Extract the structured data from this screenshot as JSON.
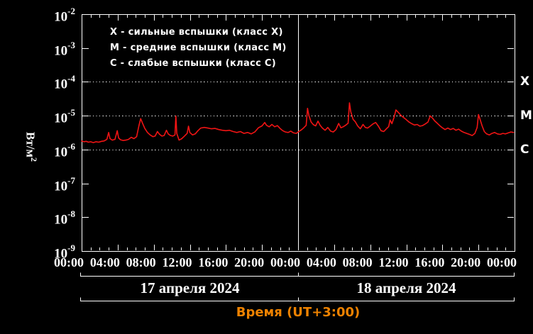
{
  "page": {
    "background": "#000000",
    "text_color": "#ffffff"
  },
  "chart_data": {
    "type": "line",
    "title": "Время (UT+3:00)",
    "title_color": "#ee8200",
    "ylabel": "Вт/м",
    "ylabel_exponent": "2",
    "legend": [
      "X - сильные вспышки (класс X)",
      "M - средние вспышки (класс M)",
      "C - слабые вспышки (класс C)"
    ],
    "x_axis": {
      "hours_span": 48,
      "major_tick_hours": 4,
      "minor_tick_hours": 1,
      "day_separator_hour": 24,
      "tick_labels": [
        "00:00",
        "04:00",
        "08:00",
        "12:00",
        "16:00",
        "20:00",
        "00:00",
        "04:00",
        "08:00",
        "12:00",
        "16:00",
        "20:00",
        "00:00"
      ],
      "day_labels": [
        "17 апреля 2024",
        "18 апреля 2024"
      ]
    },
    "y_axis": {
      "scale": "log",
      "base": "10",
      "exponents": [
        "-2",
        "-3",
        "-4",
        "-5",
        "-6",
        "-7",
        "-8",
        "-9"
      ],
      "top_value": 0.01,
      "bottom_value": 1e-09
    },
    "reference_lines": [
      {
        "label": "X",
        "flux": 0.0001
      },
      {
        "label": "M",
        "flux": 1e-05
      },
      {
        "label": "C",
        "flux": 1e-06
      }
    ],
    "series": [
      {
        "name": "xray-flux",
        "color": "#f01414",
        "flux_unit": "1e-6 W/m2",
        "points": [
          [
            0,
            1.8
          ],
          [
            0.25,
            1.7
          ],
          [
            0.5,
            1.75
          ],
          [
            0.75,
            1.65
          ],
          [
            1,
            1.7
          ],
          [
            1.3,
            1.6
          ],
          [
            1.6,
            1.7
          ],
          [
            1.9,
            1.65
          ],
          [
            2.2,
            1.75
          ],
          [
            2.5,
            1.8
          ],
          [
            2.8,
            2.0
          ],
          [
            3.0,
            3.2
          ],
          [
            3.15,
            2.1
          ],
          [
            3.4,
            1.9
          ],
          [
            3.7,
            2.0
          ],
          [
            3.95,
            3.6
          ],
          [
            4.1,
            2.2
          ],
          [
            4.3,
            1.95
          ],
          [
            4.6,
            1.85
          ],
          [
            4.9,
            1.9
          ],
          [
            5.2,
            2.0
          ],
          [
            5.5,
            2.3
          ],
          [
            5.8,
            2.1
          ],
          [
            6.1,
            2.4
          ],
          [
            6.35,
            5.0
          ],
          [
            6.55,
            8.2
          ],
          [
            6.75,
            6.0
          ],
          [
            7.0,
            4.2
          ],
          [
            7.3,
            3.2
          ],
          [
            7.6,
            2.7
          ],
          [
            7.9,
            2.4
          ],
          [
            8.15,
            2.5
          ],
          [
            8.4,
            3.4
          ],
          [
            8.65,
            2.8
          ],
          [
            8.9,
            2.5
          ],
          [
            9.15,
            2.6
          ],
          [
            9.4,
            3.7
          ],
          [
            9.6,
            2.9
          ],
          [
            9.85,
            2.6
          ],
          [
            10.1,
            2.5
          ],
          [
            10.35,
            2.7
          ],
          [
            10.45,
            9.8
          ],
          [
            10.55,
            3.0
          ],
          [
            10.8,
            1.9
          ],
          [
            11.1,
            2.1
          ],
          [
            11.4,
            2.5
          ],
          [
            11.7,
            3.0
          ],
          [
            11.85,
            4.9
          ],
          [
            12.0,
            3.2
          ],
          [
            12.3,
            2.7
          ],
          [
            12.6,
            2.9
          ],
          [
            12.9,
            3.6
          ],
          [
            13.2,
            4.3
          ],
          [
            13.6,
            4.5
          ],
          [
            14.0,
            4.3
          ],
          [
            14.4,
            4.1
          ],
          [
            14.8,
            4.2
          ],
          [
            15.2,
            3.9
          ],
          [
            15.6,
            3.7
          ],
          [
            16.0,
            3.6
          ],
          [
            16.4,
            3.7
          ],
          [
            16.8,
            3.4
          ],
          [
            17.2,
            3.2
          ],
          [
            17.6,
            3.4
          ],
          [
            18.0,
            3.0
          ],
          [
            18.4,
            3.2
          ],
          [
            18.8,
            2.9
          ],
          [
            19.2,
            3.3
          ],
          [
            19.6,
            4.4
          ],
          [
            20.0,
            5.0
          ],
          [
            20.3,
            6.3
          ],
          [
            20.5,
            5.2
          ],
          [
            20.8,
            4.7
          ],
          [
            21.1,
            5.5
          ],
          [
            21.4,
            4.7
          ],
          [
            21.7,
            5.1
          ],
          [
            22.0,
            4.2
          ],
          [
            22.3,
            3.6
          ],
          [
            22.6,
            3.3
          ],
          [
            22.9,
            3.2
          ],
          [
            23.2,
            3.5
          ],
          [
            23.5,
            3.1
          ],
          [
            23.8,
            3.0
          ],
          [
            24.0,
            3.3
          ],
          [
            24.3,
            3.7
          ],
          [
            24.6,
            4.3
          ],
          [
            24.9,
            5.2
          ],
          [
            25.05,
            16.5
          ],
          [
            25.2,
            10.0
          ],
          [
            25.45,
            6.5
          ],
          [
            25.7,
            5.4
          ],
          [
            25.95,
            5.0
          ],
          [
            26.2,
            6.9
          ],
          [
            26.45,
            5.2
          ],
          [
            26.7,
            4.3
          ],
          [
            27.0,
            3.7
          ],
          [
            27.3,
            4.5
          ],
          [
            27.6,
            3.5
          ],
          [
            27.9,
            3.3
          ],
          [
            28.2,
            3.9
          ],
          [
            28.5,
            5.9
          ],
          [
            28.75,
            4.4
          ],
          [
            29.0,
            4.7
          ],
          [
            29.3,
            5.3
          ],
          [
            29.55,
            6.0
          ],
          [
            29.7,
            24.0
          ],
          [
            29.85,
            13.0
          ],
          [
            30.1,
            7.8
          ],
          [
            30.35,
            6.6
          ],
          [
            30.6,
            5.0
          ],
          [
            30.9,
            4.1
          ],
          [
            31.2,
            5.5
          ],
          [
            31.45,
            4.5
          ],
          [
            31.7,
            4.3
          ],
          [
            32.0,
            4.9
          ],
          [
            32.3,
            5.7
          ],
          [
            32.6,
            6.3
          ],
          [
            32.9,
            4.9
          ],
          [
            33.2,
            3.6
          ],
          [
            33.5,
            3.4
          ],
          [
            33.8,
            4.1
          ],
          [
            34.05,
            4.8
          ],
          [
            34.2,
            7.5
          ],
          [
            34.4,
            5.8
          ],
          [
            34.65,
            9.0
          ],
          [
            34.85,
            14.8
          ],
          [
            35.1,
            12.6
          ],
          [
            35.4,
            10.2
          ],
          [
            35.7,
            8.8
          ],
          [
            36.0,
            7.6
          ],
          [
            36.3,
            6.5
          ],
          [
            36.6,
            5.8
          ],
          [
            36.9,
            5.3
          ],
          [
            37.2,
            5.5
          ],
          [
            37.5,
            4.9
          ],
          [
            37.8,
            5.1
          ],
          [
            38.1,
            5.7
          ],
          [
            38.4,
            6.5
          ],
          [
            38.65,
            9.9
          ],
          [
            38.9,
            8.5
          ],
          [
            39.15,
            7.0
          ],
          [
            39.4,
            6.1
          ],
          [
            39.7,
            5.1
          ],
          [
            40.0,
            4.4
          ],
          [
            40.3,
            3.9
          ],
          [
            40.6,
            4.3
          ],
          [
            40.9,
            3.9
          ],
          [
            41.2,
            4.2
          ],
          [
            41.5,
            3.7
          ],
          [
            41.8,
            4.0
          ],
          [
            42.1,
            3.5
          ],
          [
            42.4,
            3.2
          ],
          [
            42.7,
            3.0
          ],
          [
            43.0,
            2.8
          ],
          [
            43.3,
            2.6
          ],
          [
            43.6,
            3.0
          ],
          [
            43.85,
            4.5
          ],
          [
            44.0,
            10.8
          ],
          [
            44.15,
            8.2
          ],
          [
            44.4,
            5.0
          ],
          [
            44.65,
            3.4
          ],
          [
            44.9,
            2.9
          ],
          [
            45.2,
            2.7
          ],
          [
            45.5,
            3.0
          ],
          [
            45.8,
            3.2
          ],
          [
            46.1,
            2.9
          ],
          [
            46.4,
            2.8
          ],
          [
            46.7,
            3.0
          ],
          [
            47.0,
            2.9
          ],
          [
            47.3,
            3.1
          ],
          [
            47.6,
            3.3
          ],
          [
            47.9,
            3.2
          ]
        ]
      }
    ]
  }
}
